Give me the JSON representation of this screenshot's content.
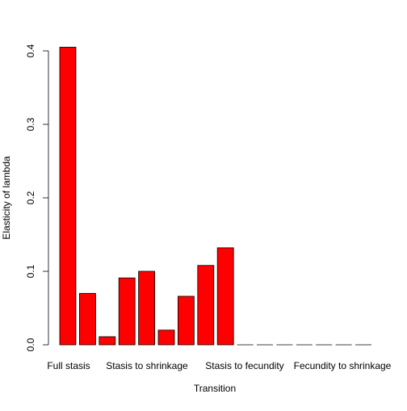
{
  "chart_data": {
    "type": "bar",
    "title": "",
    "xlabel": "Transition",
    "ylabel": "Elasticity of lambda",
    "ylim": [
      0,
      0.4
    ],
    "yticks": [
      0.0,
      0.1,
      0.2,
      0.3,
      0.4
    ],
    "ytick_labels": [
      "0.0",
      "0.1",
      "0.2",
      "0.3",
      "0.4"
    ],
    "group_labels": [
      "Full stasis",
      "Stasis to shrinkage",
      "Stasis to fecundity",
      "Fecundity to shrinkage"
    ],
    "values": [
      0.405,
      0.07,
      0.011,
      0.091,
      0.1,
      0.02,
      0.066,
      0.108,
      0.132,
      0,
      0,
      0,
      0,
      0,
      0,
      0
    ],
    "bar_color": "#FF0000",
    "grid": false,
    "legend": "none"
  }
}
